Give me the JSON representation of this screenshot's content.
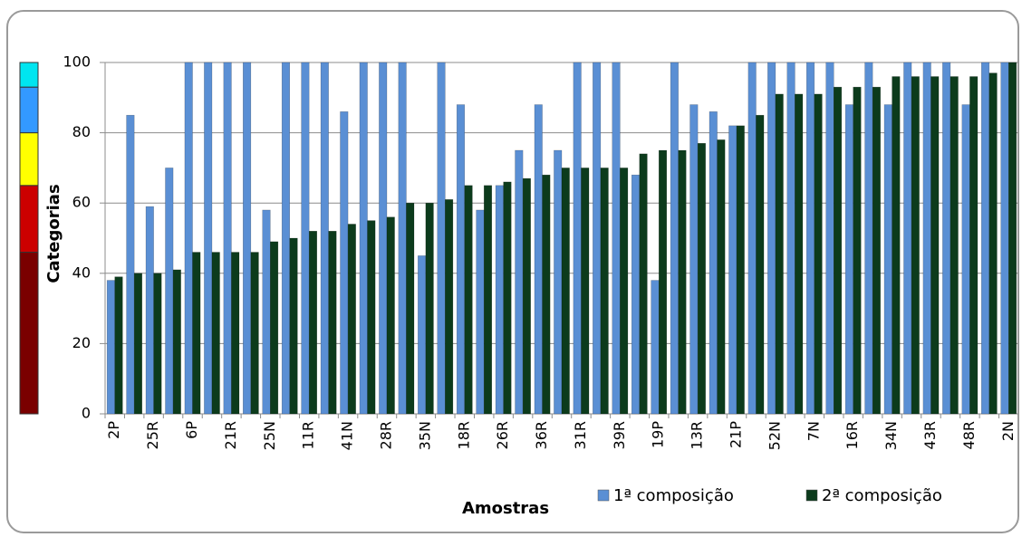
{
  "chart_data": {
    "type": "bar",
    "y_label": "Categorias",
    "x_label": "Amostras",
    "categories": [
      "2P",
      null,
      "25R",
      null,
      "6P",
      null,
      "21R",
      null,
      "25N",
      null,
      "11R",
      null,
      "41N",
      null,
      "28R",
      null,
      "35N",
      null,
      "18R",
      null,
      "26R",
      null,
      "36R",
      null,
      "31R",
      null,
      "39R",
      null,
      "19P",
      null,
      "13R",
      null,
      "21P",
      null,
      "52N",
      null,
      "7N",
      null,
      "16R",
      null,
      "34N",
      null,
      "43R",
      null,
      "48R",
      null,
      "2N"
    ],
    "series": [
      {
        "name": "1ª composição",
        "color": "#5a8fd4",
        "values": [
          38,
          85,
          59,
          70,
          100,
          100,
          100,
          100,
          58,
          100,
          100,
          100,
          86,
          100,
          100,
          100,
          45,
          100,
          88,
          58,
          65,
          75,
          88,
          75,
          100,
          100,
          100,
          68,
          38,
          100,
          88,
          86,
          82,
          100,
          100,
          100,
          100,
          100,
          88,
          100,
          88,
          100,
          100,
          100,
          88,
          100,
          100
        ]
      },
      {
        "name": "2ª composição",
        "color": "#0c3b1c",
        "values": [
          39,
          40,
          40,
          41,
          46,
          46,
          46,
          46,
          49,
          50,
          52,
          52,
          54,
          55,
          56,
          60,
          60,
          61,
          65,
          65,
          66,
          67,
          68,
          70,
          70,
          70,
          70,
          74,
          75,
          75,
          77,
          78,
          82,
          85,
          91,
          91,
          91,
          93,
          93,
          93,
          96,
          96,
          96,
          96,
          96,
          97,
          100
        ]
      }
    ],
    "ylim": [
      0,
      100
    ],
    "yticks": [
      0,
      20,
      40,
      60,
      80,
      100
    ],
    "grid": true,
    "legend": "bottom",
    "color_bands": [
      {
        "from": 0,
        "to": 46,
        "color": "#7a0000"
      },
      {
        "from": 46,
        "to": 65,
        "color": "#cc0000"
      },
      {
        "from": 65,
        "to": 80,
        "color": "#ffff00"
      },
      {
        "from": 80,
        "to": 93,
        "color": "#3399ff"
      },
      {
        "from": 93,
        "to": 100,
        "color": "#00e5f0"
      }
    ]
  }
}
